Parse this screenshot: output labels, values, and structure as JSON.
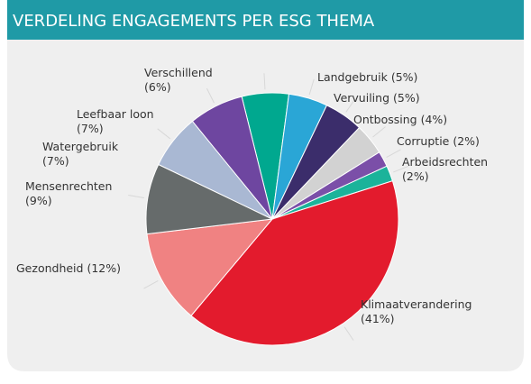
{
  "chart_data": {
    "type": "pie",
    "title": "VERDELING ENGAGEMENTS PER ESG THEMA",
    "categories": [
      "Verschillend",
      "Landgebruik",
      "Vervuiling",
      "Ontbossing",
      "Corruptie",
      "Arbeidsrechten",
      "Klimaatverandering",
      "Gezondheid",
      "Mensenrechten",
      "Watergebruik",
      "Leefbaar loon"
    ],
    "values": [
      6,
      5,
      5,
      4,
      2,
      2,
      41,
      12,
      9,
      7,
      7
    ],
    "value_labels": [
      "(6%)",
      "(5%)",
      "(5%)",
      "(4%)",
      "(2%)",
      "(2%)",
      "(41%)",
      "(12%)",
      "(9%)",
      "(7%)",
      "(7%)"
    ],
    "colors": [
      "#00a88f",
      "#2aa6d6",
      "#3b2d6b",
      "#d2d2d2",
      "#7b4fa8",
      "#1bb39a",
      "#e31b2d",
      "#f08282",
      "#666b6b",
      "#a9b8d3",
      "#6e46a0"
    ]
  }
}
